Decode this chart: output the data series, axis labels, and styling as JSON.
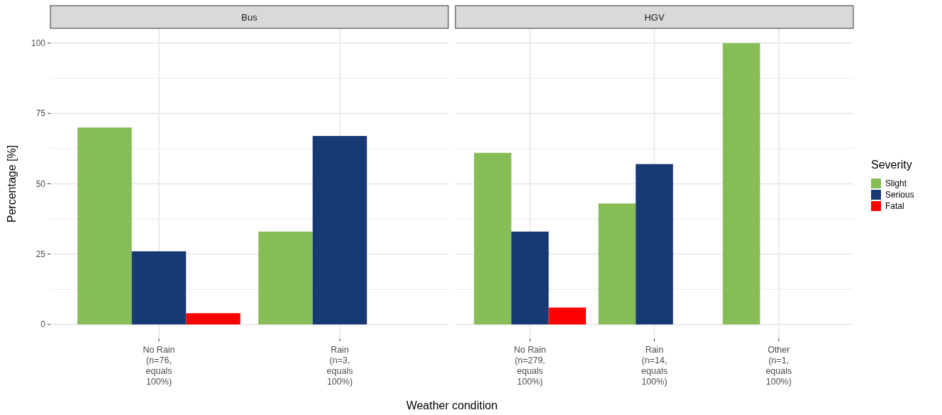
{
  "chart_data": [
    {
      "type": "bar",
      "title": "Bus",
      "ylabel": "Percentage [%]",
      "xlabel": "Weather condition",
      "categories": [
        "No Rain\n(n=76,\nequals\n100%)",
        "Rain\n(n=3,\nequals\n100%)"
      ],
      "series": [
        {
          "color": "#86bd57",
          "values": [
            70,
            33
          ]
        },
        {
          "color": "#183a74",
          "values": [
            26,
            67
          ]
        },
        {
          "color": "#ff0000",
          "values": [
            4,
            null
          ]
        }
      ],
      "ylim": [
        -5,
        105
      ],
      "yticks": [
        0,
        {
          "value": 12.5,
          "label": null
        },
        25,
        {
          "value": 37.5,
          "label": null
        },
        50,
        {
          "value": 62.5,
          "label": null
        },
        75,
        {
          "value": 87.5,
          "label": null
        },
        100
      ],
      "grid": true,
      "legend": false
    },
    {
      "type": "bar",
      "title": "HGV",
      "categories": [
        "No Rain\n(n=279,\nequals\n100%)",
        "Rain\n(n=14,\nequals\n100%)",
        "Other\n(n=1,\nequals\n100%)"
      ],
      "series": [
        {
          "name": "Slight",
          "color": "#86bd57",
          "values": [
            61,
            43,
            100
          ]
        },
        {
          "name": "Serious",
          "color": "#183a74",
          "values": [
            33,
            57,
            null
          ]
        },
        {
          "name": "Fatal",
          "color": "#ff0000",
          "values": [
            6,
            null,
            null
          ]
        }
      ],
      "ylim": [
        -5,
        105
      ],
      "yticks": [
        0,
        {
          "value": 12.5,
          "label": null
        },
        25,
        {
          "value": 37.5,
          "label": null
        },
        50,
        {
          "value": 62.5,
          "label": null
        },
        75,
        {
          "value": 87.5,
          "label": null
        },
        100
      ],
      "grid": true,
      "tick_labels": "x",
      "legend": "right",
      "legend_title": "Severity"
    }
  ]
}
